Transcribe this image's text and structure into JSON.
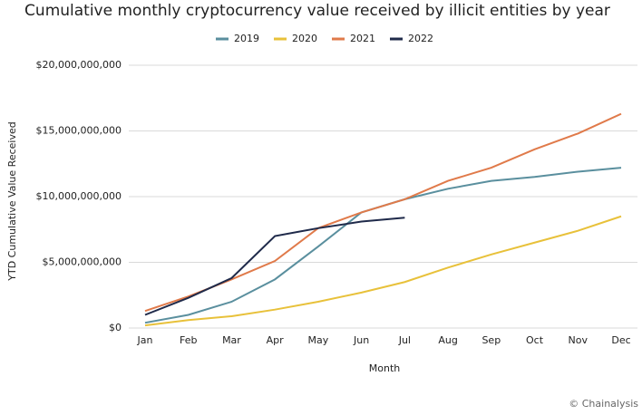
{
  "chart_data": {
    "type": "line",
    "title": "Cumulative monthly cryptocurrency value received by illicit entities by year",
    "x_label": "Month",
    "y_label": "YTD Cumulative Value Received",
    "source": "© Chainalysis",
    "categories": [
      "Jan",
      "Feb",
      "Mar",
      "Apr",
      "May",
      "Jun",
      "Jul",
      "Aug",
      "Sep",
      "Oct",
      "Nov",
      "Dec"
    ],
    "series": [
      {
        "name": "2019",
        "color": "#5a8f9e",
        "values": [
          400000000,
          1000000000,
          2000000000,
          3700000000,
          6200000000,
          8800000000,
          9800000000,
          10600000000,
          11200000000,
          11500000000,
          11900000000,
          12200000000
        ]
      },
      {
        "name": "2020",
        "color": "#e8c13a",
        "values": [
          200000000,
          600000000,
          900000000,
          1400000000,
          2000000000,
          2700000000,
          3500000000,
          4600000000,
          5600000000,
          6500000000,
          7400000000,
          8500000000
        ]
      },
      {
        "name": "2021",
        "color": "#e07a4a",
        "values": [
          1300000000,
          2400000000,
          3700000000,
          5100000000,
          7600000000,
          8800000000,
          9800000000,
          11200000000,
          12200000000,
          13600000000,
          14800000000,
          16300000000
        ]
      },
      {
        "name": "2022",
        "color": "#1f2a4a",
        "values": [
          1000000000,
          2300000000,
          3800000000,
          7000000000,
          7600000000,
          8100000000,
          8400000000,
          null,
          null,
          null,
          null,
          null
        ]
      }
    ],
    "ylim": [
      0,
      20000000000
    ],
    "yticks": [
      {
        "value": 0,
        "label": "$0"
      },
      {
        "value": 5000000000,
        "label": "$5,000,000,000"
      },
      {
        "value": 10000000000,
        "label": "$10,000,000,000"
      },
      {
        "value": 15000000000,
        "label": "$15,000,000,000"
      },
      {
        "value": 20000000000,
        "label": "$20,000,000,000"
      }
    ],
    "grid": true,
    "legend": "top"
  }
}
